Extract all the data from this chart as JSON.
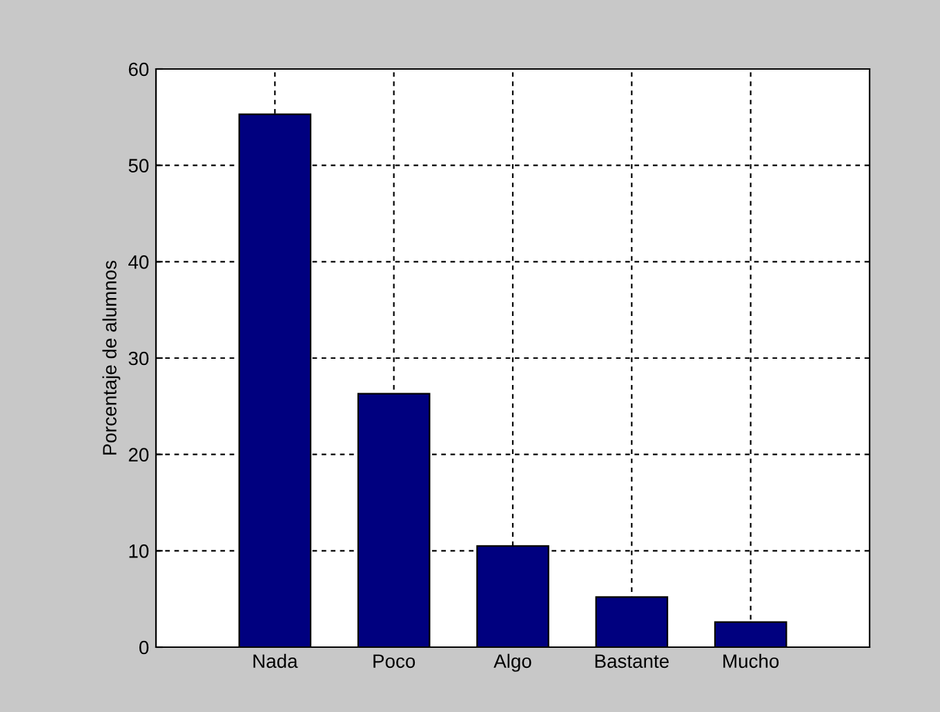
{
  "chart_data": {
    "type": "bar",
    "ylabel": "Porcentaje de alumnos",
    "categories": [
      "Nada",
      "Poco",
      "Algo",
      "Bastante",
      "Mucho"
    ],
    "values": [
      55.3,
      26.3,
      10.5,
      5.2,
      2.6
    ],
    "color": "#00007f",
    "ylim": [
      0,
      60
    ],
    "yticks": [
      0,
      10,
      20,
      30,
      40,
      50,
      60
    ],
    "grid": true
  }
}
